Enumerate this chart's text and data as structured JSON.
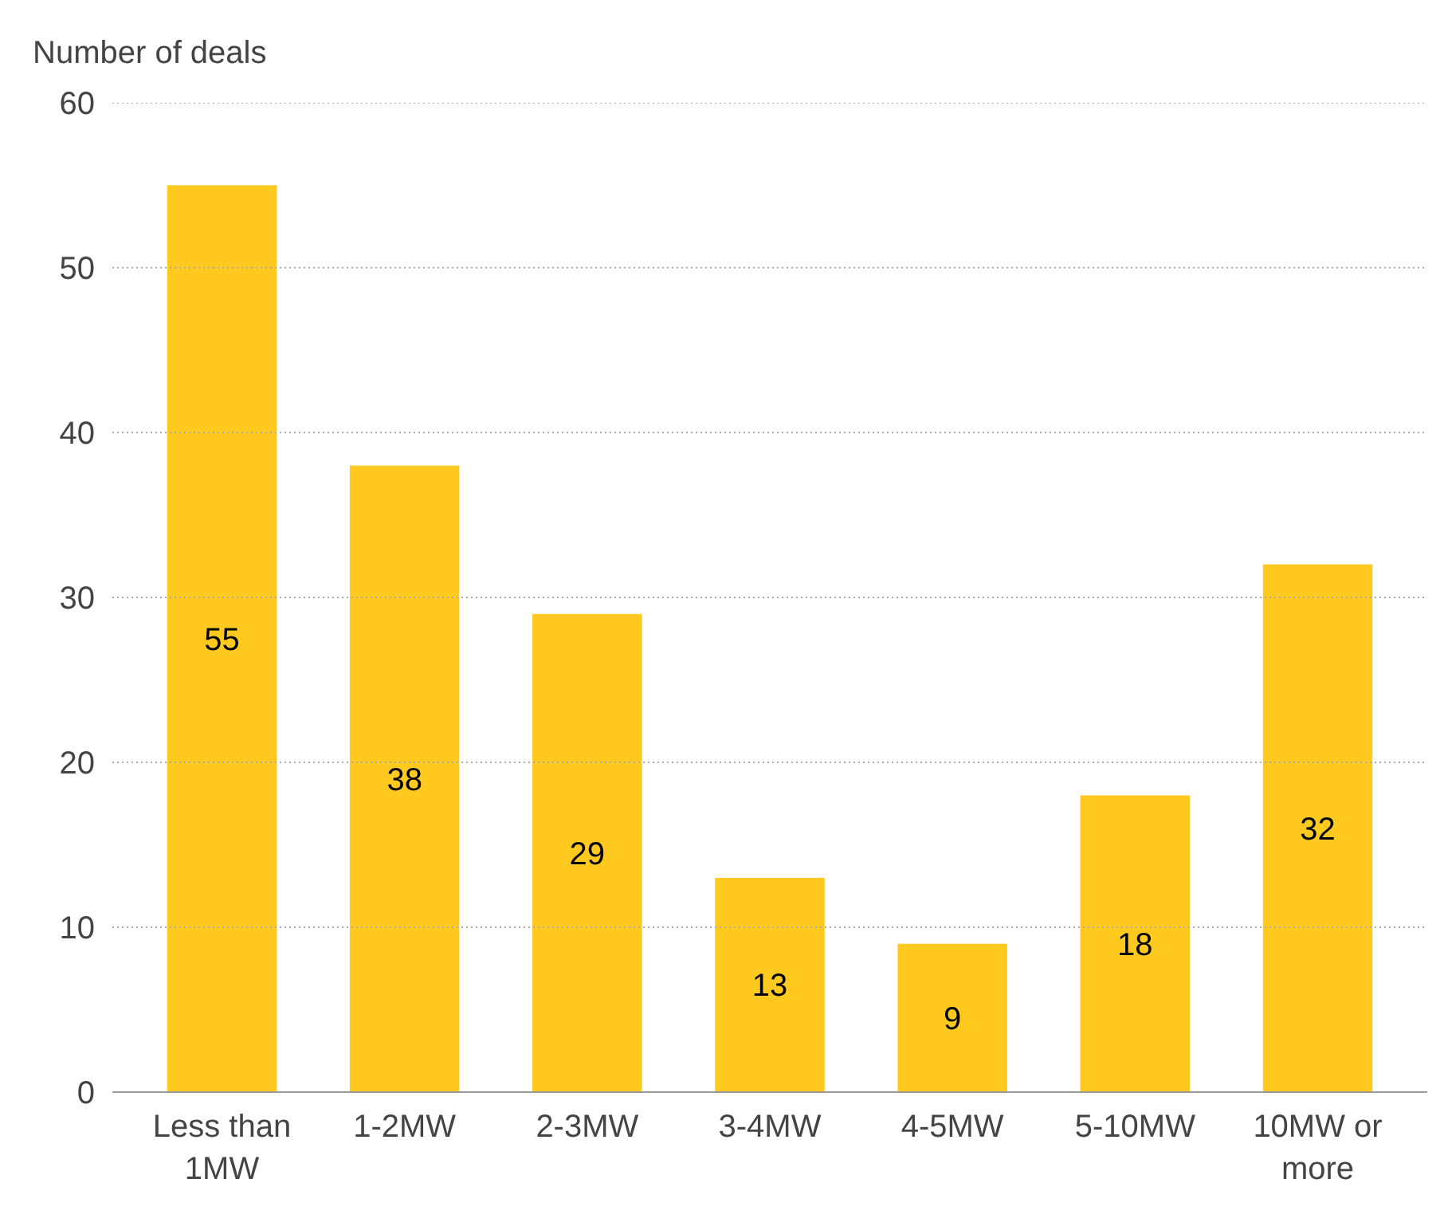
{
  "chart_data": {
    "type": "bar",
    "ylabel": "Number of deals",
    "categories": [
      "Less than 1MW",
      "1-2MW",
      "2-3MW",
      "3-4MW",
      "4-5MW",
      "5-10MW",
      "10MW or more"
    ],
    "values": [
      55,
      38,
      29,
      13,
      9,
      18,
      32
    ],
    "color": "#ffc91f",
    "ylim": [
      0,
      60
    ],
    "yticks": [
      0,
      10,
      20,
      30,
      40,
      50,
      60
    ],
    "grid": "y",
    "data_labels": true
  }
}
